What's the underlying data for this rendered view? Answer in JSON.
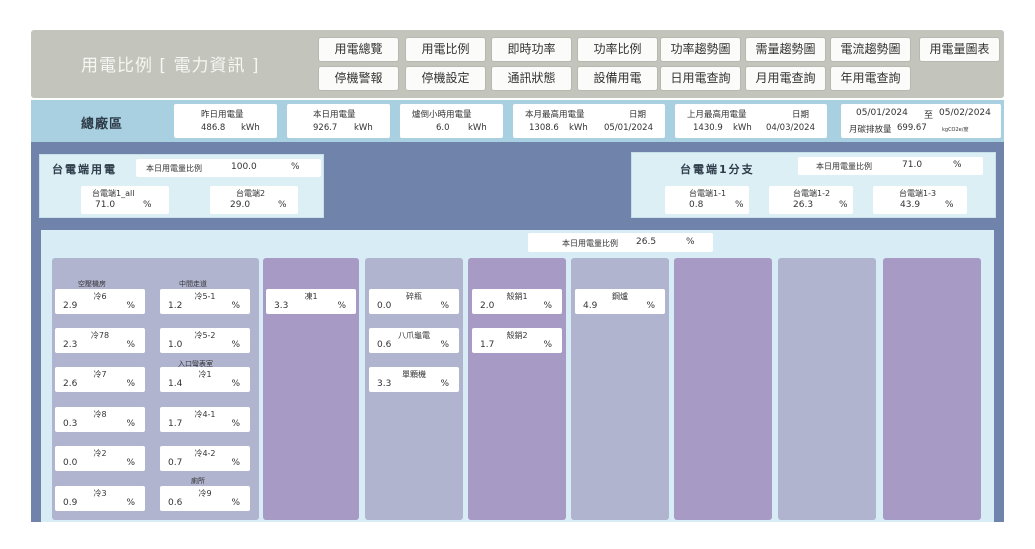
{
  "header": {
    "title": "用電比例 [ 電力資訊 ]",
    "nav_row1": [
      "用電總覽",
      "用電比例",
      "即時功率",
      "功率比例",
      "功率趨勢圖",
      "需量趨勢圖",
      "電流趨勢圖",
      "用電量圖表"
    ],
    "nav_row2": [
      "停機警報",
      "停機設定",
      "通訊狀態",
      "設備用電",
      "日用電查詢",
      "月用電查詢",
      "年用電查詢"
    ]
  },
  "summary": {
    "label": "總廠區",
    "yesterday": {
      "title": "昨日用電量",
      "value": "486.8",
      "unit": "kWh"
    },
    "today": {
      "title": "本日用電量",
      "value": "926.7",
      "unit": "kWh"
    },
    "last_hour": {
      "title": "爐倒小時用電量",
      "value": "6.0",
      "unit": "kWh"
    },
    "month_max": {
      "title": "本月最高用電量",
      "date_title": "日期",
      "value": "1308.6",
      "unit": "kWh",
      "date": "05/01/2024"
    },
    "last_month_max": {
      "title": "上月最高用電量",
      "date_title": "日期",
      "value": "1430.9",
      "unit": "kWh",
      "date": "04/03/2024"
    },
    "range": {
      "start": "05/01/2024",
      "to": "至",
      "end": "05/02/2024",
      "emission_title": "月碳排放量",
      "emission_value": "699.67",
      "emission_unit": "kgCO2e/度"
    }
  },
  "taipower": {
    "title": "台電端用電",
    "ratio_label": "本日用電量比例",
    "ratio_value": "100.0",
    "unit": "%",
    "items": [
      {
        "name": "台電端1_all",
        "value": "71.0",
        "unit": "%"
      },
      {
        "name": "台電端2",
        "value": "29.0",
        "unit": "%"
      }
    ]
  },
  "branch": {
    "title": "台電端1分支",
    "ratio_label": "本日用電量比例",
    "ratio_value": "71.0",
    "unit": "%",
    "items": [
      {
        "name": "台電端1-1",
        "value": "0.8",
        "unit": "%"
      },
      {
        "name": "台電端1-2",
        "value": "26.3",
        "unit": "%"
      },
      {
        "name": "台電端1-3",
        "value": "43.9",
        "unit": "%"
      }
    ]
  },
  "lower": {
    "ratio_label": "本日用電量比例",
    "ratio_value": "26.5",
    "unit": "%",
    "sections": {
      "s1": "空壓機房",
      "s2": "中間走道",
      "s3": "入口彎表室",
      "s4": "廁所"
    },
    "col1": [
      {
        "name": "冷6",
        "value": "2.9",
        "unit": "%"
      },
      {
        "name": "冷78",
        "value": "2.3",
        "unit": "%"
      },
      {
        "name": "冷7",
        "value": "2.6",
        "unit": "%"
      },
      {
        "name": "冷8",
        "value": "0.3",
        "unit": "%"
      },
      {
        "name": "冷2",
        "value": "0.0",
        "unit": "%"
      },
      {
        "name": "冷3",
        "value": "0.9",
        "unit": "%"
      }
    ],
    "col2": [
      {
        "name": "冷5-1",
        "value": "1.2",
        "unit": "%"
      },
      {
        "name": "冷5-2",
        "value": "1.0",
        "unit": "%"
      },
      {
        "name": "冷1",
        "value": "1.4",
        "unit": "%"
      },
      {
        "name": "冷4-1",
        "value": "1.7",
        "unit": "%"
      },
      {
        "name": "冷4-2",
        "value": "0.7",
        "unit": "%"
      },
      {
        "name": "冷9",
        "value": "0.6",
        "unit": "%"
      }
    ],
    "col3": [
      {
        "name": "凍1",
        "value": "3.3",
        "unit": "%"
      }
    ],
    "col4": [
      {
        "name": "碎瓶",
        "value": "0.0",
        "unit": "%"
      },
      {
        "name": "八爪龜電",
        "value": "0.6",
        "unit": "%"
      },
      {
        "name": "單顆機",
        "value": "3.3",
        "unit": "%"
      }
    ],
    "col5": [
      {
        "name": "殼銷1",
        "value": "2.0",
        "unit": "%"
      },
      {
        "name": "殼銷2",
        "value": "1.7",
        "unit": "%"
      }
    ],
    "col6": [
      {
        "name": "鋼爐",
        "value": "4.9",
        "unit": "%"
      }
    ]
  }
}
